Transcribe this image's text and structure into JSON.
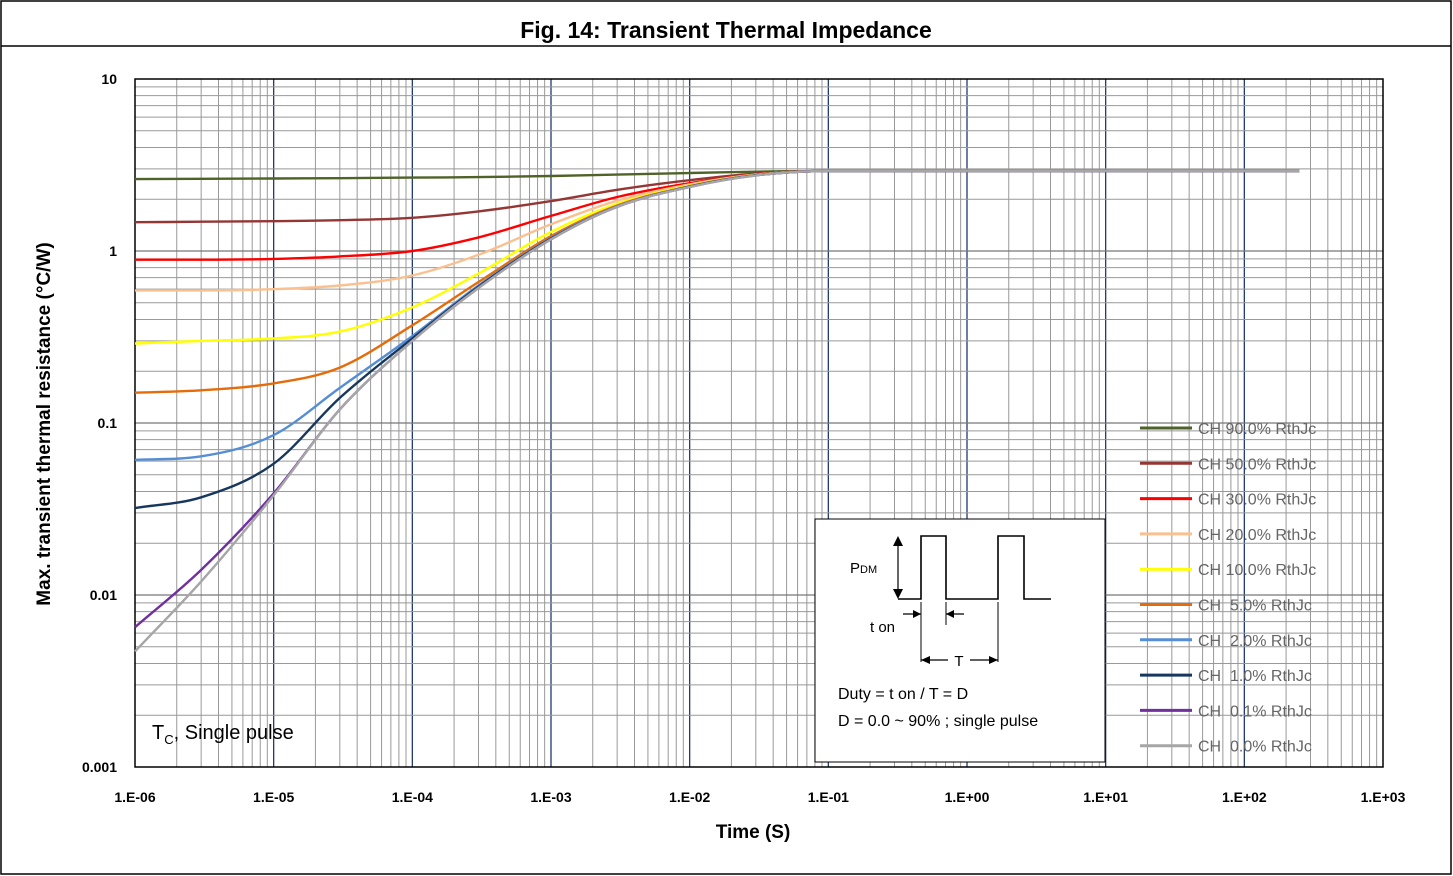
{
  "chart_data": {
    "type": "line",
    "title": "Fig. 14: Transient Thermal Impedance",
    "xlabel": "Time (S)",
    "ylabel": "Max. transient thermal resistance (°C/W)",
    "x_scale": "log",
    "y_scale": "log",
    "xlim": [
      1e-06,
      1000
    ],
    "ylim": [
      0.001,
      10
    ],
    "grid": true,
    "legend_position": "right",
    "x_ticks": [
      "1.E-06",
      "1.E-05",
      "1.E-04",
      "1.E-03",
      "1.E-02",
      "1.E-01",
      "1.E+00",
      "1.E+01",
      "1.E+02",
      "1.E+03"
    ],
    "y_ticks": [
      "10",
      "1",
      "0.1",
      "0.01",
      "0.001"
    ],
    "x": [
      1e-06,
      3e-06,
      1e-05,
      3e-05,
      0.0001,
      0.0003,
      0.001,
      0.003,
      0.01,
      0.03,
      0.1,
      1,
      10,
      100,
      250
    ],
    "series": [
      {
        "name": "CH 90.0% RthJc",
        "color": "#4f6228",
        "values": [
          2.62,
          2.63,
          2.64,
          2.65,
          2.67,
          2.69,
          2.73,
          2.78,
          2.84,
          2.89,
          2.92,
          2.92,
          2.92,
          2.92,
          2.92
        ]
      },
      {
        "name": "CH 50.0% RthJc",
        "color": "#943634",
        "values": [
          1.47,
          1.48,
          1.49,
          1.51,
          1.56,
          1.7,
          1.95,
          2.27,
          2.58,
          2.82,
          2.92,
          2.92,
          2.92,
          2.92,
          2.92
        ]
      },
      {
        "name": "CH 30.0% RthJc",
        "color": "#ff0000",
        "values": [
          0.89,
          0.89,
          0.9,
          0.93,
          1.0,
          1.2,
          1.6,
          2.06,
          2.48,
          2.79,
          2.92,
          2.92,
          2.92,
          2.92,
          2.92
        ]
      },
      {
        "name": "CH 20.0% RthJc",
        "color": "#fac090",
        "values": [
          0.59,
          0.59,
          0.6,
          0.63,
          0.72,
          0.95,
          1.43,
          1.96,
          2.44,
          2.78,
          2.92,
          2.92,
          2.92,
          2.92,
          2.92
        ]
      },
      {
        "name": "CH 10.0% RthJc",
        "color": "#ffff00",
        "values": [
          0.29,
          0.3,
          0.31,
          0.34,
          0.47,
          0.74,
          1.29,
          1.88,
          2.4,
          2.77,
          2.92,
          2.92,
          2.92,
          2.92,
          2.92
        ]
      },
      {
        "name": "CH  5.0% RthJc",
        "color": "#e46c0a",
        "values": [
          0.15,
          0.155,
          0.17,
          0.21,
          0.37,
          0.66,
          1.22,
          1.84,
          2.38,
          2.76,
          2.92,
          2.92,
          2.92,
          2.92,
          2.92
        ]
      },
      {
        "name": "CH  2.0% RthJc",
        "color": "#558ed5",
        "values": [
          0.061,
          0.064,
          0.085,
          0.16,
          0.32,
          0.63,
          1.19,
          1.82,
          2.37,
          2.76,
          2.92,
          2.92,
          2.92,
          2.92,
          2.92
        ]
      },
      {
        "name": "CH  1.0% RthJc",
        "color": "#17375e",
        "values": [
          0.032,
          0.037,
          0.058,
          0.14,
          0.31,
          0.62,
          1.18,
          1.81,
          2.37,
          2.76,
          2.92,
          2.92,
          2.92,
          2.92,
          2.92
        ]
      },
      {
        "name": "CH  0.1% RthJc",
        "color": "#7030a0",
        "values": [
          0.0065,
          0.014,
          0.039,
          0.12,
          0.3,
          0.61,
          1.17,
          1.81,
          2.36,
          2.75,
          2.92,
          2.92,
          2.92,
          2.92,
          2.92
        ]
      },
      {
        "name": "CH  0.0% RthJc",
        "color": "#a6a6a6",
        "values": [
          0.0047,
          0.012,
          0.038,
          0.12,
          0.3,
          0.61,
          1.17,
          1.81,
          2.36,
          2.75,
          2.92,
          2.92,
          2.92,
          2.92,
          2.92
        ]
      }
    ],
    "annotations": {
      "condition_main": "T",
      "condition_sub": "C",
      "condition_rest": ", Single pulse",
      "inset_pdm_main": "P",
      "inset_pdm_sub": "DM",
      "inset_ton": "t on",
      "inset_period": "T",
      "inset_duty_line1": "Duty = t on / T = D",
      "inset_duty_line2": "D = 0.0 ~ 90% ; single pulse"
    }
  }
}
